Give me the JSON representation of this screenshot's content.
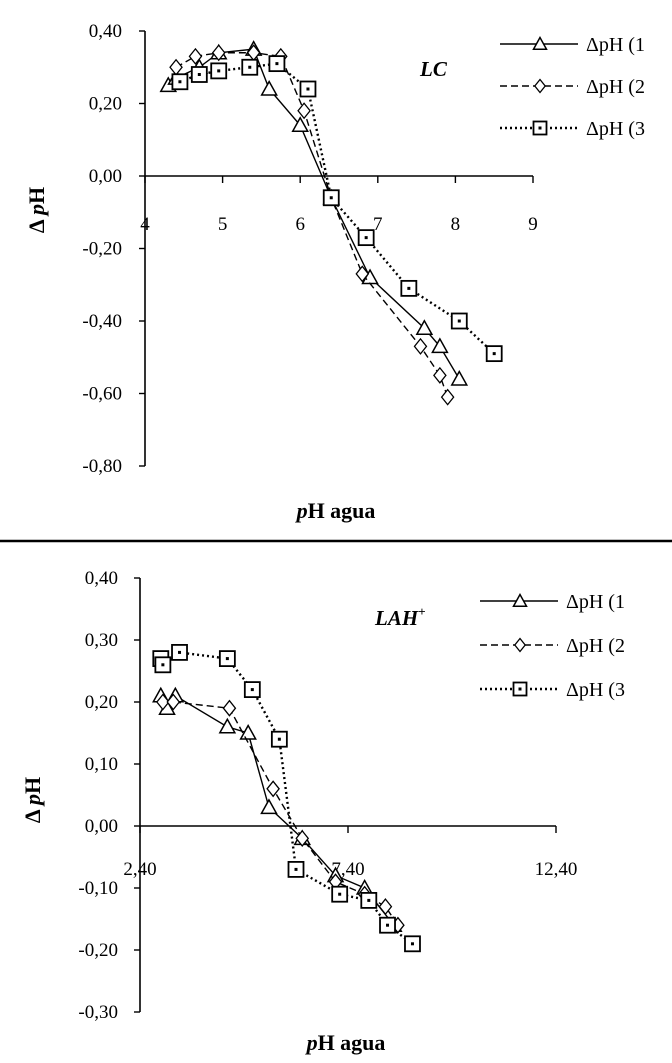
{
  "chart_data": [
    {
      "type": "line",
      "panel_label": "LC",
      "xlabel_italic": "p",
      "xlabel_rest": "H agua",
      "ylabel_prefix": "Δ",
      "ylabel_italic": "p",
      "ylabel_rest": "H",
      "xlim": [
        4,
        9
      ],
      "ylim": [
        -0.8,
        0.4
      ],
      "x_ticks": [
        "4",
        "5",
        "6",
        "7",
        "8",
        "9"
      ],
      "y_ticks": [
        "0,40",
        "0,20",
        "0,00",
        "-0,20",
        "-0,40",
        "-0,60",
        "-0,80"
      ],
      "series": [
        {
          "name": "ΔpH (1",
          "marker": "triangle",
          "dash": "solid",
          "x": [
            4.3,
            4.4,
            4.7,
            4.95,
            5.4,
            5.6,
            6.0,
            6.4,
            6.9,
            7.6,
            7.8,
            8.05
          ],
          "y": [
            0.25,
            0.27,
            0.3,
            0.34,
            0.35,
            0.24,
            0.14,
            -0.06,
            -0.28,
            -0.42,
            -0.47,
            -0.56
          ]
        },
        {
          "name": "ΔpH (2",
          "marker": "diamond",
          "dash": "dashed",
          "x": [
            4.4,
            4.65,
            4.95,
            5.4,
            5.75,
            6.05,
            6.4,
            6.8,
            7.55,
            7.8,
            7.9
          ],
          "y": [
            0.3,
            0.33,
            0.34,
            0.34,
            0.33,
            0.18,
            -0.06,
            -0.27,
            -0.47,
            -0.55,
            -0.61
          ]
        },
        {
          "name": "ΔpH (3",
          "marker": "square",
          "dash": "dotted",
          "x": [
            4.45,
            4.7,
            4.95,
            5.35,
            5.7,
            6.1,
            6.4,
            6.85,
            7.4,
            8.05,
            8.5
          ],
          "y": [
            0.26,
            0.28,
            0.29,
            0.3,
            0.31,
            0.24,
            -0.06,
            -0.17,
            -0.31,
            -0.4,
            -0.49
          ]
        }
      ]
    },
    {
      "type": "line",
      "panel_label": "LAH",
      "panel_label_sup": "+",
      "xlabel_italic": "p",
      "xlabel_rest": "H agua",
      "ylabel_prefix": "Δ",
      "ylabel_italic": "p",
      "ylabel_rest": "H",
      "xlim": [
        2.4,
        12.4
      ],
      "ylim": [
        -0.3,
        0.4
      ],
      "x_ticks": [
        "2,40",
        "7,40",
        "12,40"
      ],
      "x_tick_values": [
        2.4,
        7.4,
        12.4
      ],
      "y_ticks": [
        "0,40",
        "0,30",
        "0,20",
        "0,10",
        "0,00",
        "-0,10",
        "-0,20",
        "-0,30"
      ],
      "series": [
        {
          "name": "ΔpH (1",
          "marker": "triangle",
          "dash": "solid",
          "x": [
            2.9,
            3.05,
            3.25,
            4.5,
            5.0,
            5.5,
            6.3,
            7.1,
            7.8,
            8.5
          ],
          "y": [
            0.21,
            0.19,
            0.21,
            0.16,
            0.15,
            0.03,
            -0.02,
            -0.08,
            -0.1,
            -0.16
          ]
        },
        {
          "name": "ΔpH (2",
          "marker": "diamond",
          "dash": "dashed",
          "x": [
            2.95,
            3.2,
            4.55,
            5.6,
            6.3,
            7.1,
            7.8,
            8.3,
            8.6
          ],
          "y": [
            0.2,
            0.2,
            0.19,
            0.06,
            -0.02,
            -0.09,
            -0.11,
            -0.13,
            -0.16
          ]
        },
        {
          "name": "ΔpH (3",
          "marker": "square",
          "dash": "dotted",
          "x": [
            2.9,
            2.95,
            3.35,
            4.5,
            5.1,
            5.75,
            6.15,
            7.2,
            7.9,
            8.35,
            8.95
          ],
          "y": [
            0.27,
            0.26,
            0.28,
            0.27,
            0.22,
            0.14,
            -0.07,
            -0.11,
            -0.12,
            -0.16,
            -0.19
          ]
        }
      ]
    }
  ]
}
